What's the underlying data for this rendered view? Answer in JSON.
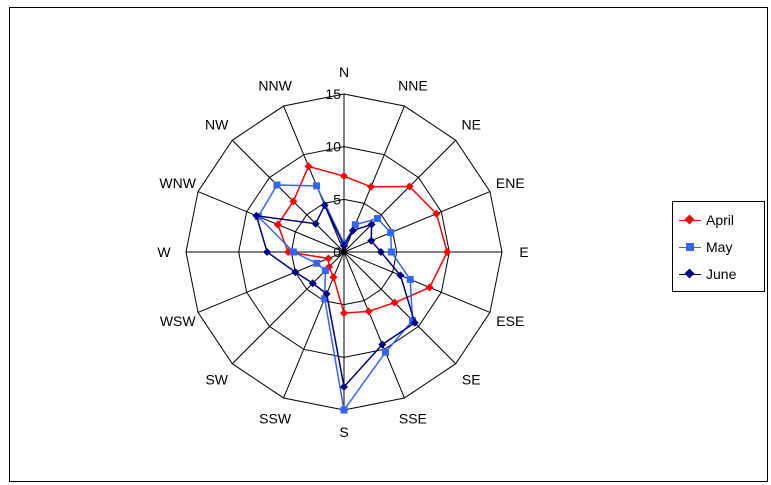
{
  "chart_data": {
    "type": "radar",
    "title": "",
    "directions": [
      "N",
      "NNE",
      "NE",
      "ENE",
      "E",
      "ESE",
      "SE",
      "SSE",
      "S",
      "SSW",
      "SW",
      "WSW",
      "W",
      "WNW",
      "NW",
      "NNW"
    ],
    "rlim": [
      0,
      15
    ],
    "tick_labels": [
      "0",
      "5",
      "10",
      "15"
    ],
    "grid": true,
    "legend_position": "right",
    "series": [
      {
        "name": "April",
        "color": "#ff0000",
        "marker": "diamond",
        "values": [
          7.2,
          6.7,
          8.8,
          9.5,
          9.8,
          8.8,
          6.8,
          6.1,
          5.8,
          2.6,
          2.0,
          1.6,
          5.3,
          6.8,
          6.8,
          8.8
        ]
      },
      {
        "name": "May",
        "color": "#3366ff",
        "marker": "square",
        "values": [
          0.8,
          2.8,
          4.5,
          4.8,
          4.5,
          6.8,
          9.2,
          10.3,
          15.0,
          4.8,
          2.5,
          2.8,
          4.8,
          8.8,
          9.0,
          6.8
        ]
      },
      {
        "name": "June",
        "color": "#000080",
        "marker": "diamond",
        "values": [
          0.6,
          2.2,
          3.7,
          2.8,
          3.5,
          5.8,
          9.5,
          9.5,
          12.8,
          4.3,
          4.2,
          5.0,
          7.3,
          9.0,
          3.8,
          4.8
        ]
      }
    ]
  }
}
